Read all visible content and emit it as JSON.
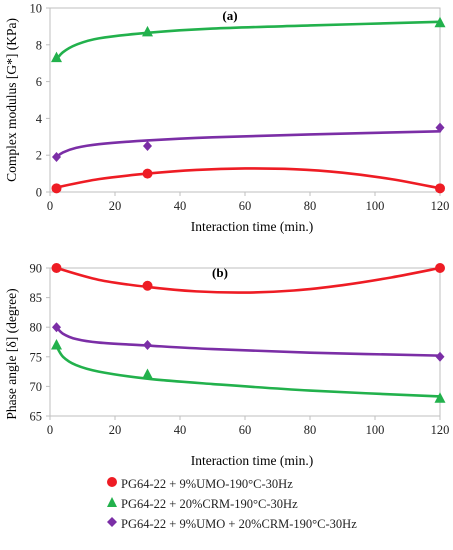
{
  "colors": {
    "series": [
      "#ee1c24",
      "#22b14c",
      "#7b2ea6"
    ],
    "axis": "#bfbfbf",
    "text": "#222222"
  },
  "legend": [
    "PG64-22 + 9%UMO-190°C-30Hz",
    "PG64-22 + 20%CRM-190°C-30Hz",
    "PG64-22 + 9%UMO + 20%CRM-190°C-30Hz"
  ],
  "chart_data": [
    {
      "type": "scatter",
      "panel_label": "(a)",
      "title": "",
      "xlabel": "Interaction time (min.)",
      "ylabel": "Complex modulus [G*] (KPa)",
      "xlim": [
        0,
        120
      ],
      "ylim": [
        0,
        10
      ],
      "xticks": [
        0,
        20,
        40,
        60,
        80,
        100,
        120
      ],
      "yticks": [
        0,
        2,
        4,
        6,
        8,
        10
      ],
      "grid": false,
      "trendline": "fitted curve",
      "series": [
        {
          "name": "PG64-22 + 9%UMO-190°C-30Hz",
          "marker": "circle",
          "x": [
            2,
            30,
            120
          ],
          "y": [
            0.2,
            1.0,
            0.2
          ],
          "curve": [
            [
              2,
              0.25
            ],
            [
              15,
              0.7
            ],
            [
              30,
              1.0
            ],
            [
              45,
              1.2
            ],
            [
              60,
              1.28
            ],
            [
              75,
              1.24
            ],
            [
              90,
              1.05
            ],
            [
              105,
              0.7
            ],
            [
              120,
              0.2
            ]
          ]
        },
        {
          "name": "PG64-22 + 20%CRM-190°C-30Hz",
          "marker": "triangle",
          "x": [
            2,
            30,
            120
          ],
          "y": [
            7.3,
            8.7,
            9.2
          ],
          "curve": [
            [
              2,
              7.2
            ],
            [
              4,
              7.6
            ],
            [
              8,
              8.0
            ],
            [
              15,
              8.35
            ],
            [
              30,
              8.65
            ],
            [
              50,
              8.88
            ],
            [
              80,
              9.05
            ],
            [
              120,
              9.25
            ]
          ]
        },
        {
          "name": "PG64-22 + 9%UMO + 20%CRM-190°C-30Hz",
          "marker": "diamond",
          "x": [
            2,
            30,
            120
          ],
          "y": [
            1.9,
            2.5,
            3.5
          ],
          "curve": [
            [
              2,
              1.9
            ],
            [
              4,
              2.15
            ],
            [
              8,
              2.4
            ],
            [
              15,
              2.6
            ],
            [
              30,
              2.8
            ],
            [
              50,
              2.97
            ],
            [
              80,
              3.13
            ],
            [
              120,
              3.3
            ]
          ]
        }
      ]
    },
    {
      "type": "scatter",
      "panel_label": "(b)",
      "title": "",
      "xlabel": "Interaction time (min.)",
      "ylabel": "Phase angle [δ] (degree)",
      "xlim": [
        0,
        120
      ],
      "ylim": [
        65,
        90
      ],
      "xticks": [
        0,
        20,
        40,
        60,
        80,
        100,
        120
      ],
      "yticks": [
        65,
        70,
        75,
        80,
        85,
        90
      ],
      "grid": false,
      "trendline": "fitted curve",
      "series": [
        {
          "name": "PG64-22 + 9%UMO-190°C-30Hz",
          "marker": "circle",
          "x": [
            2,
            30,
            120
          ],
          "y": [
            90,
            87,
            90
          ],
          "curve": [
            [
              2,
              90
            ],
            [
              15,
              88
            ],
            [
              30,
              86.8
            ],
            [
              45,
              86.05
            ],
            [
              60,
              85.85
            ],
            [
              75,
              86.2
            ],
            [
              90,
              87.1
            ],
            [
              105,
              88.4
            ],
            [
              120,
              90
            ]
          ]
        },
        {
          "name": "PG64-22 + 20%CRM-190°C-30Hz",
          "marker": "triangle",
          "x": [
            2,
            30,
            120
          ],
          "y": [
            77,
            72,
            68
          ],
          "curve": [
            [
              2,
              76.8
            ],
            [
              4,
              75.0
            ],
            [
              8,
              73.6
            ],
            [
              15,
              72.5
            ],
            [
              30,
              71.3
            ],
            [
              50,
              70.4
            ],
            [
              80,
              69.3
            ],
            [
              120,
              68.3
            ]
          ]
        },
        {
          "name": "PG64-22 + 9%UMO + 20%CRM-190°C-30Hz",
          "marker": "diamond",
          "x": [
            2,
            30,
            120
          ],
          "y": [
            80,
            77,
            75
          ],
          "curve": [
            [
              2,
              80
            ],
            [
              4,
              78.9
            ],
            [
              8,
              78.0
            ],
            [
              15,
              77.4
            ],
            [
              30,
              76.9
            ],
            [
              50,
              76.3
            ],
            [
              80,
              75.7
            ],
            [
              120,
              75.2
            ]
          ]
        }
      ]
    }
  ]
}
